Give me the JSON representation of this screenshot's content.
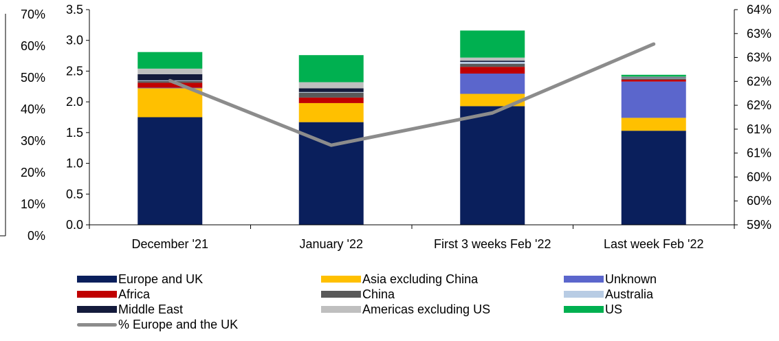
{
  "chart_data": {
    "type": "bar",
    "stacked": true,
    "categories": [
      "December '21",
      "January '22",
      "First 3 weeks Feb '22",
      "Last week Feb '22"
    ],
    "series": [
      {
        "name": "Europe and UK",
        "color": "#0a1f5c",
        "values": [
          1.75,
          1.67,
          1.93,
          1.53
        ]
      },
      {
        "name": "Asia excluding China",
        "color": "#ffc000",
        "values": [
          0.47,
          0.31,
          0.2,
          0.21
        ]
      },
      {
        "name": "Unknown",
        "color": "#5b66cc",
        "values": [
          0.01,
          0.0,
          0.33,
          0.59
        ]
      },
      {
        "name": "Africa",
        "color": "#c00000",
        "values": [
          0.08,
          0.09,
          0.11,
          0.03
        ]
      },
      {
        "name": "China",
        "color": "#595959",
        "values": [
          0.03,
          0.08,
          0.05,
          0.02
        ]
      },
      {
        "name": "Australia",
        "color": "#b8cce4",
        "values": [
          0.01,
          0.01,
          0.03,
          0.01
        ]
      },
      {
        "name": "Middle East",
        "color": "#141b3c",
        "values": [
          0.1,
          0.06,
          0.02,
          0.01
        ]
      },
      {
        "name": "Americas excluding US",
        "color": "#bfbfbf",
        "values": [
          0.09,
          0.1,
          0.05,
          0.01
        ]
      },
      {
        "name": "US",
        "color": "#00b050",
        "values": [
          0.27,
          0.44,
          0.44,
          0.03
        ]
      }
    ],
    "line_series": {
      "name": "% Europe and the UK",
      "color": "#8c8c8c",
      "values": [
        62.35,
        60.85,
        61.6,
        63.2
      ]
    },
    "ylim": [
      0,
      3.5
    ],
    "yticks": [
      "0.0",
      "0.5",
      "1.0",
      "1.5",
      "2.0",
      "2.5",
      "3.0",
      "3.5"
    ],
    "y_outer_ticks": [
      "0%",
      "10%",
      "20%",
      "30%",
      "40%",
      "50%",
      "60%",
      "70%"
    ],
    "y2lim": [
      59,
      64
    ],
    "y2ticks": [
      "59%",
      "60%",
      "60%",
      "61%",
      "61%",
      "62%",
      "62%",
      "63%",
      "63%",
      "64%"
    ],
    "grid": false,
    "legend_position": "bottom"
  }
}
